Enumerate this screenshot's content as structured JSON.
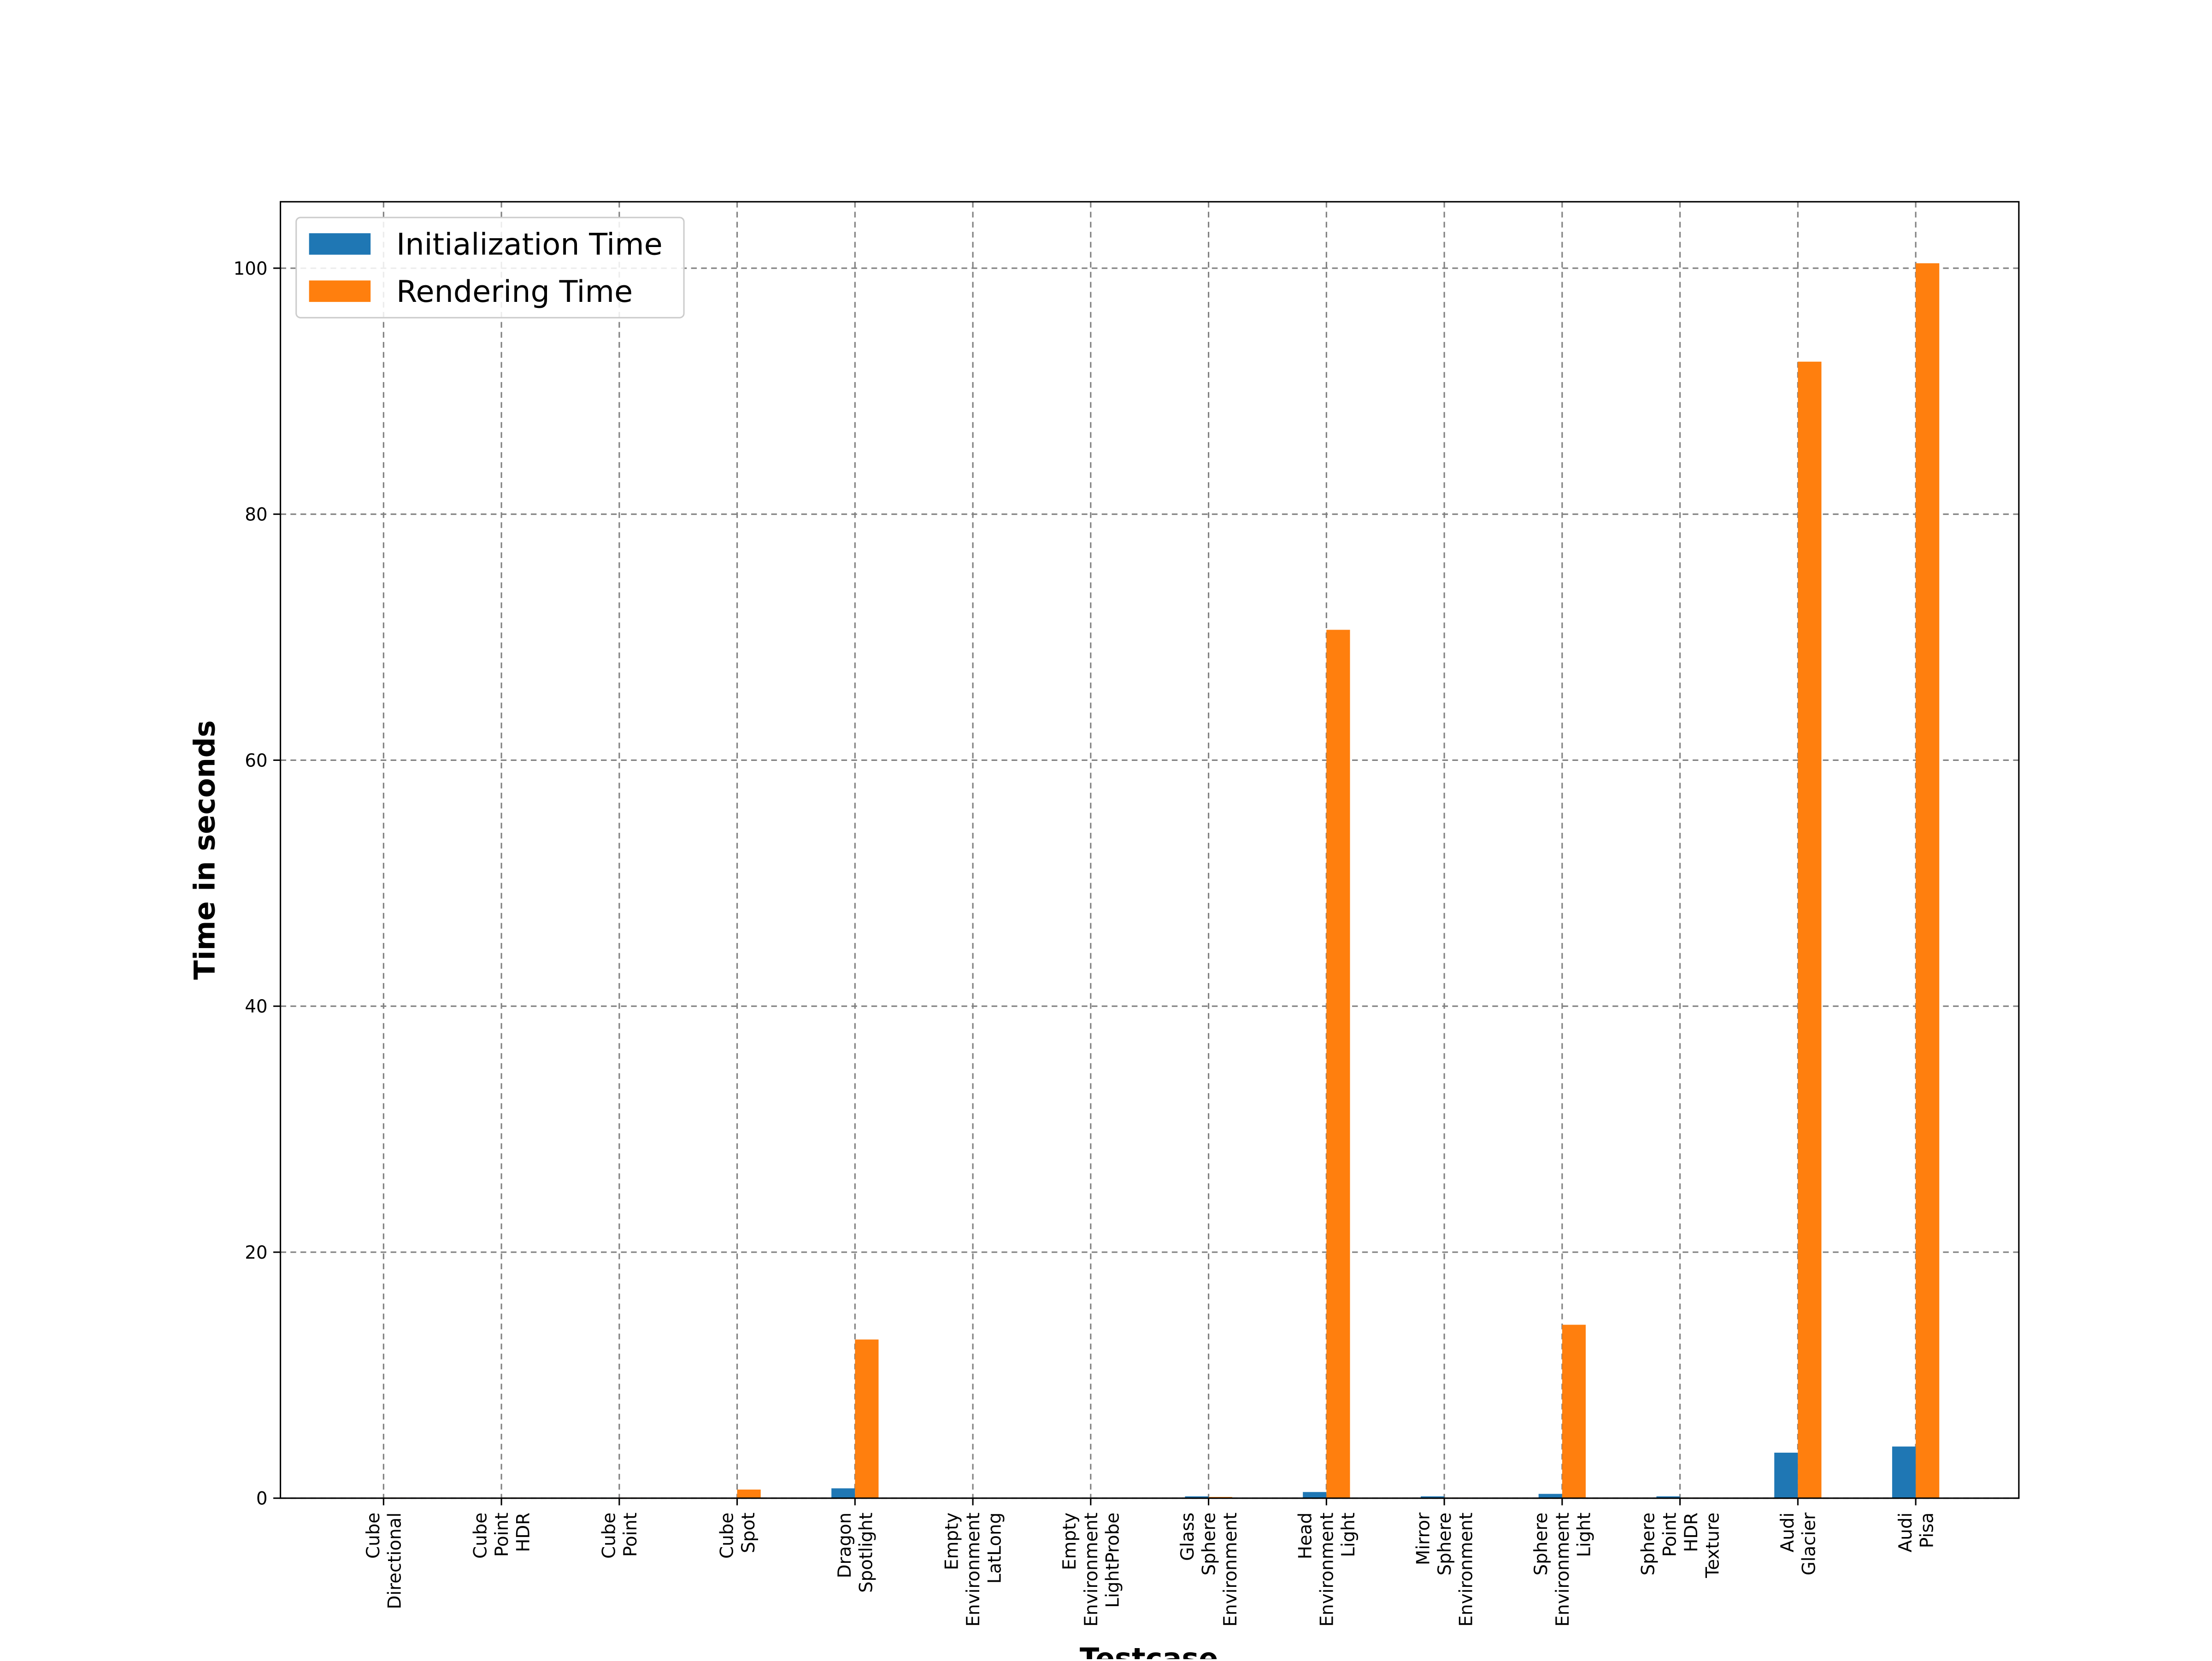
{
  "chart_data": {
    "type": "bar",
    "xlabel": "Testcase",
    "ylabel": "Time in seconds",
    "categories": [
      "Cube\nDirectional",
      "Cube\nPoint\nHDR",
      "Cube\nPoint",
      "Cube\nSpot",
      "Dragon\nSpotlight",
      "Empty\nEnvironment\nLatLong",
      "Empty\nEnvironment\nLightProbe",
      "Glass\nSphere\nEnvironment",
      "Head\nEnvironment\nLight",
      "Mirror\nSphere\nEnvironment",
      "Sphere\nEnvironment\nLight",
      "Sphere\nPoint\nHDR\nTexture",
      "Audi\nGlacier",
      "Audi\nPisa"
    ],
    "series": [
      {
        "name": "Initialization Time",
        "color": "#1f77b4",
        "values": [
          0.02,
          0.02,
          0.02,
          0.02,
          0.8,
          0.01,
          0.01,
          0.15,
          0.5,
          0.15,
          0.35,
          0.15,
          3.7,
          4.2
        ]
      },
      {
        "name": "Rendering Time",
        "color": "#ff7f0e",
        "values": [
          0.05,
          0.05,
          0.05,
          0.7,
          12.9,
          0.02,
          0.02,
          0.1,
          70.6,
          0.05,
          14.1,
          0.05,
          92.4,
          100.4
        ]
      }
    ],
    "ylim": [
      0,
      105.4
    ],
    "yticks": [
      0,
      20,
      40,
      60,
      80,
      100
    ],
    "grid": true,
    "legend": "upper left"
  }
}
